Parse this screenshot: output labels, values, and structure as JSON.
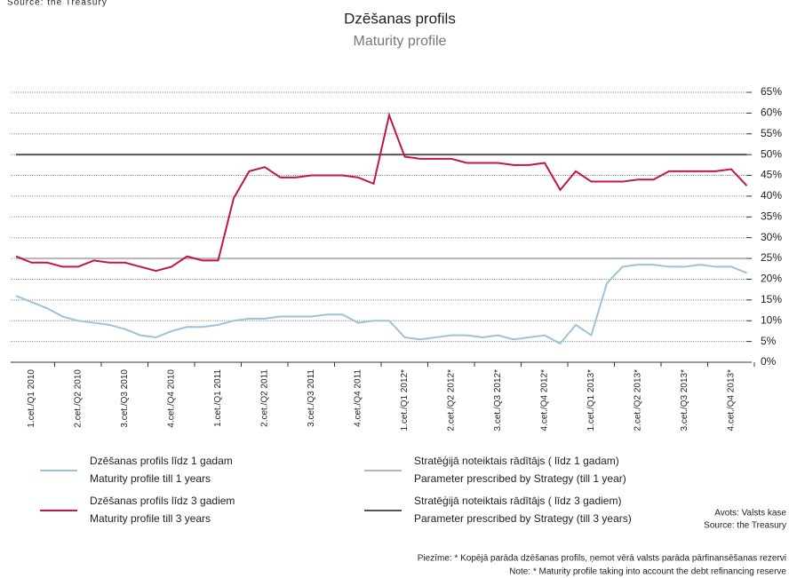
{
  "chart_data": {
    "type": "line",
    "top_source": "Source: the Treasury",
    "title": "Dzēšanas profils",
    "subtitle": "Maturity profile",
    "categories": [
      null,
      "1.cet./Q1 2010",
      null,
      null,
      "2.cet./Q2 2010",
      null,
      null,
      "3.cet./Q3 2010",
      null,
      null,
      "4.cet./Q4 2010",
      null,
      null,
      "1.cet./Q1 2011",
      null,
      null,
      "2.cet./Q2 2011",
      null,
      null,
      "3.cet./Q3 2011",
      null,
      null,
      "4.cet./Q4 2011",
      null,
      null,
      "1.cet./Q1 2012*",
      null,
      null,
      "2.cet./Q2 2012*",
      null,
      null,
      "3.cet./Q3 2012*",
      null,
      null,
      "4.cet./Q4 2012*",
      null,
      null,
      "1.cet./Q1 2013*",
      null,
      null,
      "2.cet./Q2 2013*",
      null,
      null,
      "3.cet./Q3 2013*",
      null,
      null,
      "4.cet./Q4 2013*",
      null
    ],
    "series": [
      {
        "name": "Dzēšanas profils līdz 1 gadam",
        "name_en": "Maturity profile till 1 years",
        "color": "#9dc3d6",
        "values": [
          16,
          14.5,
          13,
          11,
          10,
          9.5,
          9,
          8,
          6.5,
          6,
          7.5,
          8.5,
          8.5,
          9,
          10,
          10.5,
          10.5,
          11,
          11,
          11,
          11.5,
          11.5,
          9.5,
          10,
          10,
          6,
          5.5,
          6,
          6.5,
          6.5,
          6,
          6.5,
          5.5,
          6,
          6.5,
          4.5,
          9,
          6.5,
          19,
          23,
          23.5,
          23.5,
          23,
          23,
          23.5,
          23,
          23,
          21.5
        ]
      },
      {
        "name": "Dzēšanas profils līdz 3 gadiem",
        "name_en": "Maturity profile till 3 years",
        "color": "#c0164d",
        "values": [
          25.5,
          24,
          24,
          23,
          23,
          24.5,
          24,
          24,
          23,
          22,
          23,
          25.5,
          24.5,
          24.5,
          39.5,
          46,
          47,
          44.5,
          44.5,
          45,
          45,
          45,
          44.5,
          43,
          59.5,
          49.5,
          49,
          49,
          49,
          48,
          48,
          48,
          47.5,
          47.5,
          48,
          41.5,
          46,
          43.5,
          43.5,
          43.5,
          44,
          44,
          46,
          46,
          46,
          46,
          46.5,
          42.5
        ]
      },
      {
        "name": "Stratēģijā noteiktais rādītājs ( līdz 1 gadam)",
        "name_en": "Parameter prescribed by Strategy (till 1 year)",
        "color": "#b5b5b5",
        "values": [
          25,
          25,
          25,
          25,
          25,
          25,
          25,
          25,
          25,
          25,
          25,
          25,
          25,
          25,
          25,
          25,
          25,
          25,
          25,
          25,
          25,
          25,
          25,
          25,
          25,
          25,
          25,
          25,
          25,
          25,
          25,
          25,
          25,
          25,
          25,
          25,
          25,
          25,
          25,
          25,
          25,
          25,
          25,
          25,
          25,
          25,
          25,
          25
        ]
      },
      {
        "name": "Stratēģijā noteiktais rādītājs ( līdz 3 gadiem)",
        "name_en": "Parameter prescribed by Strategy (till 3 years)",
        "color": "#555555",
        "values": [
          50,
          50,
          50,
          50,
          50,
          50,
          50,
          50,
          50,
          50,
          50,
          50,
          50,
          50,
          50,
          50,
          50,
          50,
          50,
          50,
          50,
          50,
          50,
          50,
          50,
          50,
          50,
          50,
          50,
          50,
          50,
          50,
          50,
          50,
          50,
          50,
          50,
          50,
          50,
          50,
          50,
          50,
          50,
          50,
          50,
          50,
          50,
          50
        ]
      }
    ],
    "ylim": [
      0,
      65
    ],
    "yticks": [
      {
        "value": 0,
        "label": "0%"
      },
      {
        "value": 5,
        "label": "5%"
      },
      {
        "value": 10,
        "label": "10%"
      },
      {
        "value": 15,
        "label": "15%"
      },
      {
        "value": 20,
        "label": "20%"
      },
      {
        "value": 25,
        "label": "25%"
      },
      {
        "value": 30,
        "label": "30%"
      },
      {
        "value": 35,
        "label": "35%"
      },
      {
        "value": 40,
        "label": "40%"
      },
      {
        "value": 45,
        "label": "45%"
      },
      {
        "value": 50,
        "label": "50%"
      },
      {
        "value": 55,
        "label": "55%"
      },
      {
        "value": 60,
        "label": "60%"
      },
      {
        "value": 65,
        "label": "65%"
      }
    ],
    "grid": true,
    "source": [
      "Avots: Valsts kase",
      "Source: the Treasury"
    ],
    "notes": [
      "Piezīme: * Kopējā parāda dzēšanas profils, ņemot vērā valsts parāda pārfinansēšanas rezervi",
      "Note: * Maturity profile taking into account the debt refinancing reserve"
    ]
  }
}
